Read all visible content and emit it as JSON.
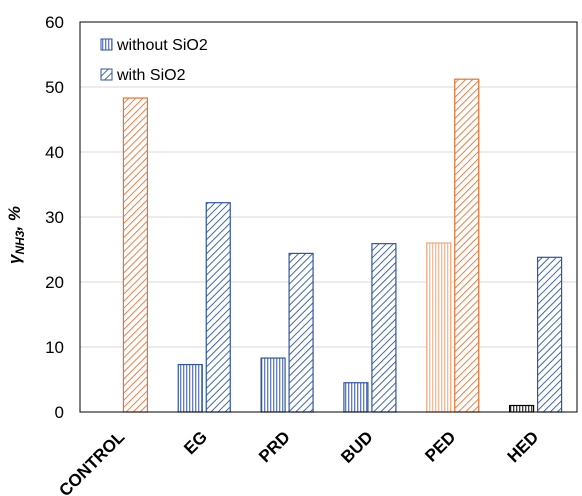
{
  "chart_data": {
    "type": "bar",
    "categories": [
      "CONTROL",
      "EG",
      "PRD",
      "BUD",
      "PED",
      "HED"
    ],
    "series": [
      {
        "name": "without SiO2",
        "pattern": "vertical-lines",
        "values": [
          null,
          7.3,
          8.3,
          4.5,
          26.0,
          1.0
        ],
        "colors": [
          "#e97132",
          "#2f55a4",
          "#2f55a4",
          "#2f55a4",
          "#f4a77a",
          "#000000"
        ]
      },
      {
        "name": "with SiO2",
        "pattern": "diagonal-lines",
        "values": [
          48.3,
          32.2,
          24.4,
          25.9,
          51.2,
          23.8
        ],
        "colors": [
          "#e97132",
          "#2f55a4",
          "#2f55a4",
          "#2f55a4",
          "#e97132",
          "#2f55a4"
        ]
      }
    ],
    "ylabel_main": "γ",
    "ylabel_sub": "NH3",
    "ylabel_suffix": ", %",
    "ylim": [
      0,
      60
    ],
    "yticks": [
      "0",
      "10",
      "20",
      "30",
      "40",
      "50",
      "60"
    ],
    "grid": "horizontal",
    "legend_position": "top-left"
  }
}
